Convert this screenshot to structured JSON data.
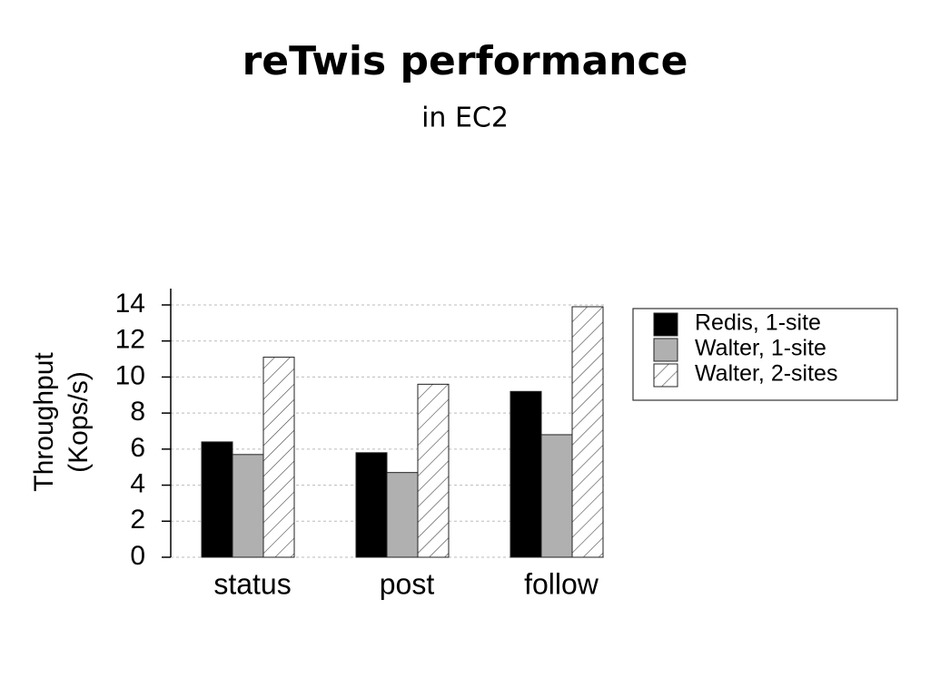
{
  "chart_data": {
    "type": "bar",
    "title": "reTwis performance",
    "subtitle": "in EC2",
    "y_label": [
      "Throughput",
      "(Kops/s)"
    ],
    "categories": [
      "status",
      "post",
      "follow"
    ],
    "series": [
      {
        "name": "Redis, 1-site",
        "color": "#000000",
        "values": [
          6.4,
          5.8,
          9.2
        ]
      },
      {
        "name": "Walter, 1-site",
        "color": "#b0b0b0",
        "values": [
          5.7,
          4.7,
          6.8
        ]
      },
      {
        "name": "Walter, 2-sites",
        "color": "#ffffff",
        "hatch": true,
        "values": [
          11.1,
          9.6,
          13.9
        ]
      }
    ],
    "ylim": [
      0,
      14
    ],
    "yticks": [
      0,
      2,
      4,
      6,
      8,
      10,
      12,
      14
    ],
    "grid": true,
    "legend": "right"
  }
}
